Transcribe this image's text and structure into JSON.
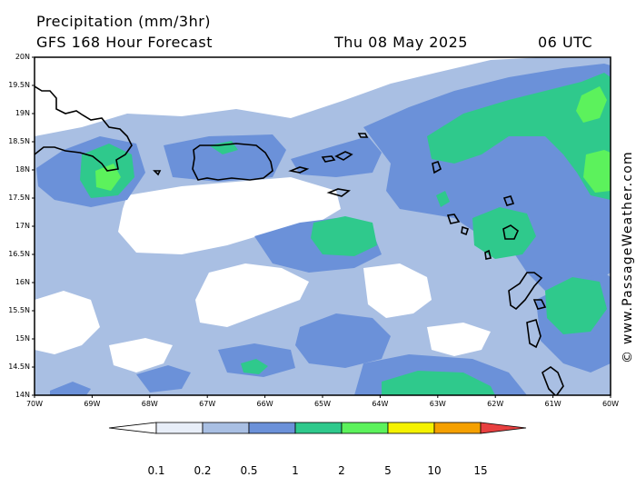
{
  "title": "Precipitation (mm/3hr)",
  "subtitle": "GFS 168 Hour Forecast",
  "date": "Thu 08 May 2025",
  "time": "06 UTC",
  "watermark": "© www.PassageWeather.com",
  "map": {
    "lat_labels": [
      "20N",
      "19.5N",
      "19N",
      "18.5N",
      "18N",
      "17.5N",
      "17N",
      "16.5N",
      "16N",
      "15.5N",
      "15N",
      "14.5N",
      "14N"
    ],
    "lon_labels": [
      "70W",
      "69W",
      "68W",
      "67W",
      "66W",
      "65W",
      "64W",
      "63W",
      "62W",
      "61W",
      "60W"
    ],
    "lat_range": [
      14,
      20
    ],
    "lon_range": [
      -70,
      -60
    ]
  },
  "legend": {
    "labels": [
      "0.1",
      "0.2",
      "0.5",
      "1",
      "2",
      "5",
      "10",
      "15"
    ],
    "colors": {
      "c01": "#e8eef8",
      "c02": "#a9bfe3",
      "c05": "#6b91d9",
      "c1": "#2fc98c",
      "c2": "#5cf25c",
      "c5": "#f5f200",
      "c10": "#f5a000",
      "c15": "#e84040"
    }
  }
}
